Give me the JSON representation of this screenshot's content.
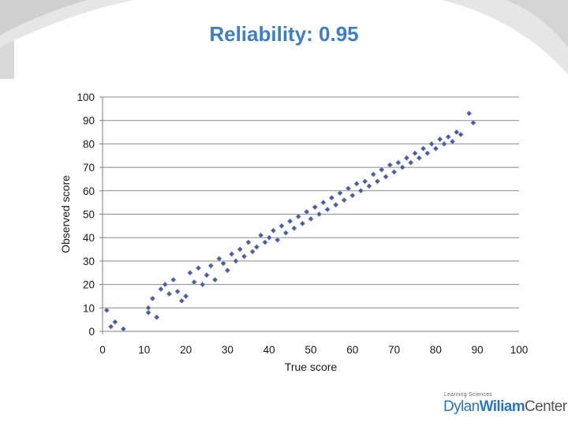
{
  "slide": {
    "title": "Reliability: 0.95"
  },
  "logo": {
    "small_text": "Learning Sciences",
    "word1": "Dylan",
    "word2": "Wiliam",
    "word3": "Center"
  },
  "chart_data": {
    "type": "scatter",
    "title": "Reliability: 0.95",
    "xlabel": "True score",
    "ylabel": "Observed score",
    "xlim": [
      0,
      100
    ],
    "ylim": [
      0,
      100
    ],
    "xticks": [
      0,
      10,
      20,
      30,
      40,
      50,
      60,
      70,
      80,
      90,
      100
    ],
    "yticks": [
      0,
      10,
      20,
      30,
      40,
      50,
      60,
      70,
      80,
      90,
      100
    ],
    "grid": "horizontal",
    "legend": "none",
    "marker": "diamond",
    "marker_color": "#4a5a96",
    "series": [
      {
        "points": [
          [
            1,
            9
          ],
          [
            2,
            2
          ],
          [
            3,
            4
          ],
          [
            5,
            1
          ],
          [
            11,
            10
          ],
          [
            11,
            8
          ],
          [
            12,
            14
          ],
          [
            13,
            6
          ],
          [
            14,
            18
          ],
          [
            15,
            20
          ],
          [
            16,
            16
          ],
          [
            17,
            22
          ],
          [
            18,
            17
          ],
          [
            19,
            13
          ],
          [
            20,
            15
          ],
          [
            21,
            25
          ],
          [
            22,
            21
          ],
          [
            23,
            27
          ],
          [
            24,
            20
          ],
          [
            25,
            24
          ],
          [
            26,
            28
          ],
          [
            27,
            22
          ],
          [
            28,
            31
          ],
          [
            29,
            29
          ],
          [
            30,
            26
          ],
          [
            31,
            33
          ],
          [
            32,
            30
          ],
          [
            33,
            35
          ],
          [
            34,
            32
          ],
          [
            35,
            38
          ],
          [
            36,
            34
          ],
          [
            37,
            36
          ],
          [
            38,
            41
          ],
          [
            39,
            38
          ],
          [
            40,
            40
          ],
          [
            41,
            43
          ],
          [
            42,
            39
          ],
          [
            43,
            45
          ],
          [
            44,
            42
          ],
          [
            45,
            47
          ],
          [
            46,
            44
          ],
          [
            47,
            49
          ],
          [
            48,
            46
          ],
          [
            49,
            51
          ],
          [
            50,
            48
          ],
          [
            51,
            53
          ],
          [
            52,
            50
          ],
          [
            53,
            55
          ],
          [
            54,
            52
          ],
          [
            55,
            57
          ],
          [
            56,
            54
          ],
          [
            57,
            59
          ],
          [
            58,
            56
          ],
          [
            59,
            61
          ],
          [
            60,
            58
          ],
          [
            61,
            63
          ],
          [
            62,
            60
          ],
          [
            63,
            64
          ],
          [
            64,
            62
          ],
          [
            65,
            67
          ],
          [
            66,
            64
          ],
          [
            67,
            69
          ],
          [
            68,
            66
          ],
          [
            69,
            71
          ],
          [
            70,
            68
          ],
          [
            71,
            72
          ],
          [
            72,
            70
          ],
          [
            73,
            74
          ],
          [
            74,
            72
          ],
          [
            75,
            76
          ],
          [
            76,
            74
          ],
          [
            77,
            78
          ],
          [
            78,
            76
          ],
          [
            79,
            80
          ],
          [
            80,
            78
          ],
          [
            81,
            82
          ],
          [
            82,
            80
          ],
          [
            83,
            83
          ],
          [
            84,
            81
          ],
          [
            85,
            85
          ],
          [
            86,
            84
          ],
          [
            88,
            93
          ],
          [
            89,
            89
          ]
        ]
      }
    ]
  }
}
